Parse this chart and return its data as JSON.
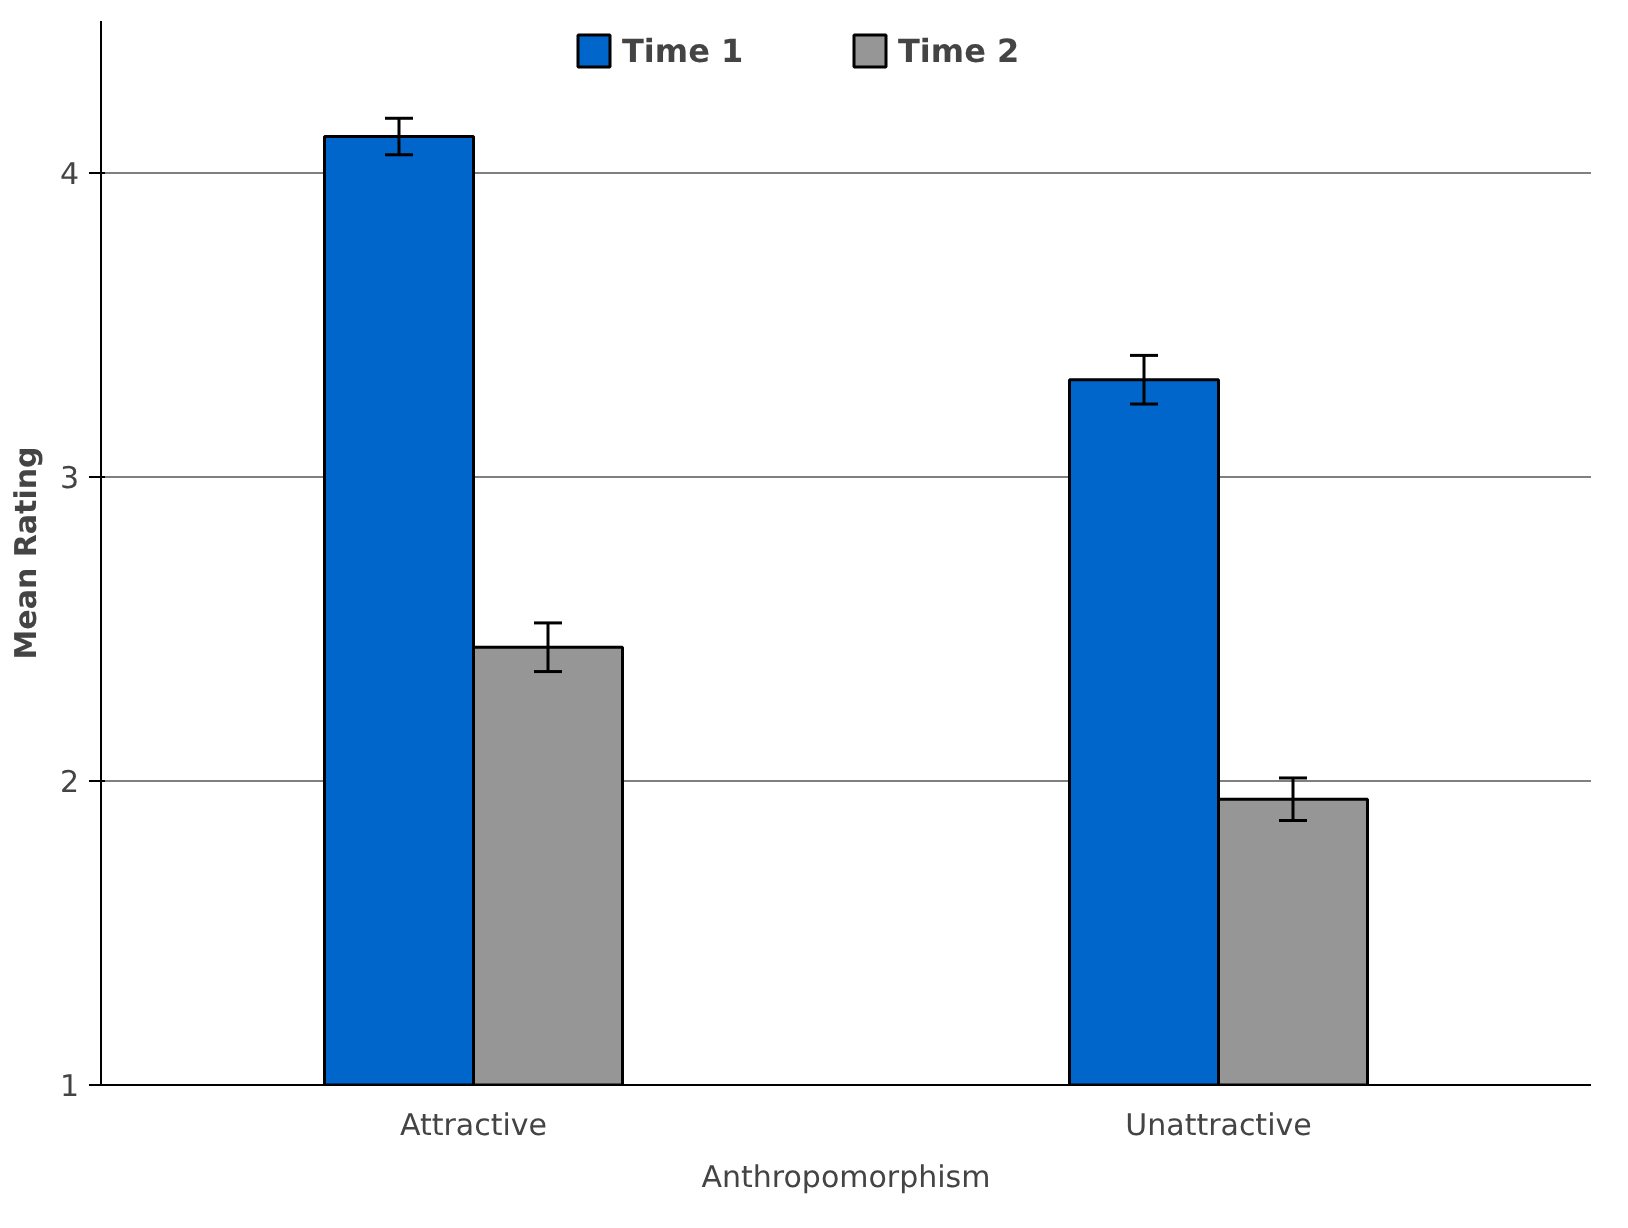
{
  "chart_data": {
    "type": "bar",
    "ylabel": "Mean Rating",
    "xlabel": "Anthropomorphism",
    "categories": [
      "Attractive",
      "Unattractive"
    ],
    "series": [
      {
        "name": "Time 1",
        "color": "#0066cc",
        "values": [
          4.12,
          3.32
        ],
        "errors": [
          0.06,
          0.08
        ]
      },
      {
        "name": "Time 2",
        "color": "#969696",
        "values": [
          2.44,
          1.94
        ],
        "errors": [
          0.08,
          0.07
        ]
      }
    ],
    "ylim": [
      1,
      4.5
    ],
    "yticks": [
      1,
      2,
      3,
      4
    ],
    "grid": "y",
    "legend": "top"
  }
}
